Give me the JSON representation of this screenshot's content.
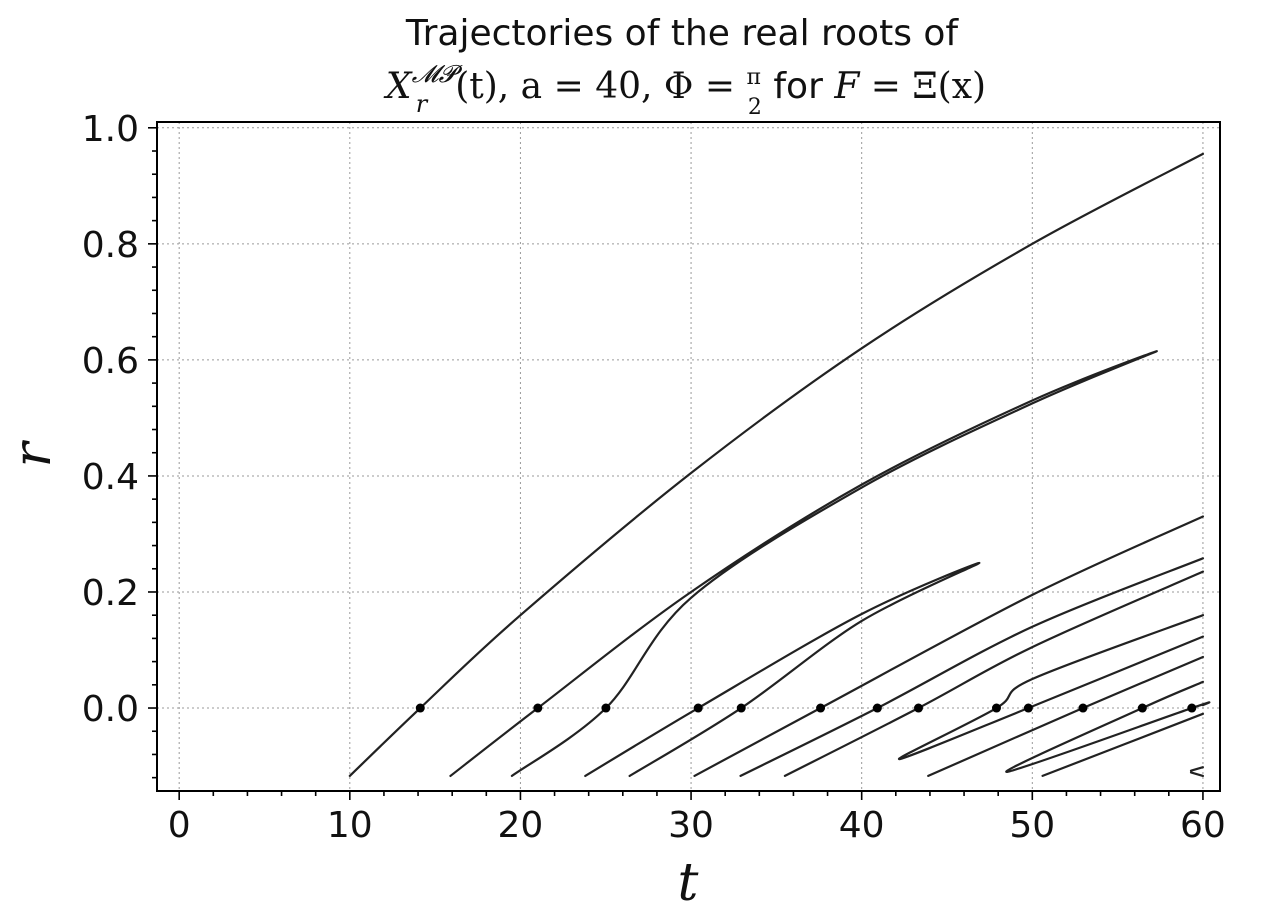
{
  "title": {
    "line1": "Trajectories of the real roots of",
    "line2_prefix": "X",
    "line2_sub": "r",
    "line2_sup": "𝓜𝓟",
    "line2_args": "(t), a = 40, Φ = ",
    "line2_frac_num": "π",
    "line2_frac_den": "2",
    "line2_for": " for ",
    "line2_F": "F",
    "line2_eq": " = Ξ(x)"
  },
  "chart_data": {
    "type": "line",
    "title": "Trajectories of the real roots of X_r^{MP}(t), a = 40, Φ = π/2 for F = Ξ(x)",
    "xlabel": "t",
    "ylabel": "r",
    "xlim": [
      -1.3,
      61.0
    ],
    "ylim": [
      -0.143,
      1.01
    ],
    "xticks": [
      0,
      10,
      20,
      30,
      40,
      50,
      60
    ],
    "xtick_labels": [
      "0",
      "10",
      "20",
      "30",
      "40",
      "50",
      "60"
    ],
    "yticks": [
      0.0,
      0.2,
      0.4,
      0.6,
      0.8,
      1.0
    ],
    "ytick_labels": [
      "0.0",
      "0.2",
      "0.4",
      "0.6",
      "0.8",
      "1.0"
    ],
    "grid": true,
    "minor_ticks": true,
    "series": [
      {
        "x": [
          10.0,
          14.13,
          20,
          30,
          40,
          50,
          60
        ],
        "y": [
          -0.117,
          0.0,
          0.16,
          0.405,
          0.62,
          0.8,
          0.955
        ]
      },
      {
        "x": [
          15.9,
          21.02,
          30,
          40,
          50,
          57.3,
          50,
          40,
          30,
          25.01,
          19.5
        ],
        "y": [
          -0.117,
          0.0,
          0.2,
          0.385,
          0.53,
          0.615,
          0.525,
          0.38,
          0.19,
          0.0,
          -0.117
        ]
      },
      {
        "x": [
          23.8,
          30.42,
          40,
          46.9,
          40,
          32.94,
          26.4
        ],
        "y": [
          -0.117,
          0.0,
          0.162,
          0.25,
          0.15,
          0.0,
          -0.117
        ]
      },
      {
        "x": [
          30.2,
          37.59,
          50,
          60
        ],
        "y": [
          -0.117,
          0.0,
          0.195,
          0.33
        ]
      },
      {
        "x": [
          32.9,
          40.92,
          50,
          60
        ],
        "y": [
          -0.117,
          0.0,
          0.14,
          0.258
        ]
      },
      {
        "x": [
          35.5,
          43.33,
          50,
          60
        ],
        "y": [
          -0.117,
          0.0,
          0.105,
          0.235
        ]
      },
      {
        "x": [
          60,
          50,
          47.9,
          42.2,
          49.77,
          60
        ],
        "y": [
          0.16,
          0.05,
          0.0,
          -0.088,
          0.0,
          0.123
        ]
      },
      {
        "x": [
          43.9,
          52.97,
          60
        ],
        "y": [
          -0.117,
          0.0,
          0.088
        ]
      },
      {
        "x": [
          60,
          56.45,
          48.5,
          59.35,
          60
        ],
        "y": [
          0.045,
          0.0,
          -0.11,
          0.0,
          0.005
        ]
      },
      {
        "x": [
          50.6,
          60
        ],
        "y": [
          -0.117,
          -0.01
        ]
      },
      {
        "x": [
          59.3,
          60
        ],
        "y": [
          -0.108,
          -0.102
        ]
      },
      {
        "x": [
          60,
          59.3
        ],
        "y": [
          -0.117,
          -0.111
        ]
      }
    ],
    "markers": {
      "x": [
        14.13,
        21.02,
        25.01,
        30.42,
        32.94,
        37.59,
        40.92,
        43.33,
        47.9,
        49.77,
        52.97,
        56.45,
        59.35
      ],
      "y": [
        0,
        0,
        0,
        0,
        0,
        0,
        0,
        0,
        0,
        0,
        0,
        0,
        0
      ]
    }
  }
}
